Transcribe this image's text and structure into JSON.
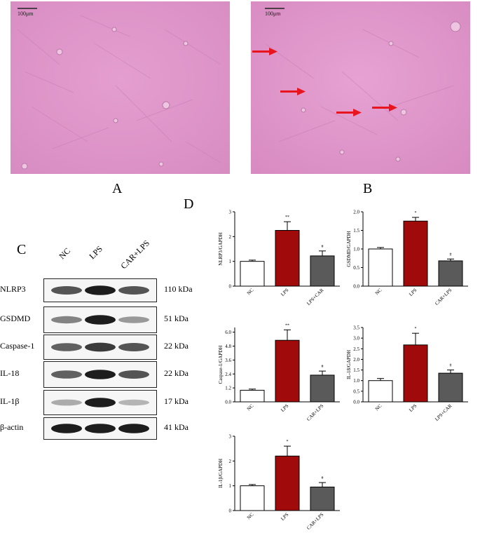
{
  "panels": {
    "a": {
      "letter": "A",
      "scale": "100μm"
    },
    "b": {
      "letter": "B",
      "scale": "100μm"
    },
    "c": {
      "letter": "C"
    },
    "d": {
      "letter": "D"
    }
  },
  "western": {
    "lanes": [
      "NC",
      "LPS",
      "CAR+LPS"
    ],
    "rows": [
      {
        "label": "NLRP3",
        "kda": "110 kDa",
        "intensity": [
          0.75,
          0.95,
          0.75
        ]
      },
      {
        "label": "GSDMD",
        "kda": "51 kDa",
        "intensity": [
          0.55,
          0.95,
          0.45
        ]
      },
      {
        "label": "Caspase-1",
        "kda": "22 kDa",
        "intensity": [
          0.7,
          0.85,
          0.75
        ]
      },
      {
        "label": "IL-18",
        "kda": "22 kDa",
        "intensity": [
          0.7,
          0.95,
          0.75
        ]
      },
      {
        "label": "IL-1β",
        "kda": "17 kDa",
        "intensity": [
          0.35,
          0.95,
          0.3
        ]
      },
      {
        "label": "β-actin",
        "kda": "41 kDa",
        "intensity": [
          0.95,
          0.95,
          0.95
        ]
      }
    ]
  },
  "colors": {
    "nc": "#ffffff",
    "lps": "#a00a0a",
    "car": "#5a5a5a",
    "tissue": "#dd95c8"
  },
  "chart_data": [
    {
      "type": "bar",
      "ylabel": "NLRP3/GAPDH",
      "categories": [
        "NC",
        "LPS",
        "LPS+CAR"
      ],
      "values": [
        1.0,
        2.25,
        1.22
      ],
      "errors": [
        0.05,
        0.35,
        0.2
      ],
      "sig": [
        "",
        "**",
        "#"
      ],
      "ylim": [
        0,
        3
      ],
      "ticks": [
        "0",
        "1",
        "2",
        "3"
      ],
      "tickvals": [
        0,
        1,
        2,
        3
      ]
    },
    {
      "type": "bar",
      "ylabel": "GSDMD/GAPDH",
      "categories": [
        "NC",
        "LPS",
        "CAR+LPS"
      ],
      "values": [
        1.0,
        1.75,
        0.68
      ],
      "errors": [
        0.04,
        0.1,
        0.05
      ],
      "sig": [
        "",
        "*",
        "#"
      ],
      "ylim": [
        0,
        2
      ],
      "ticks": [
        "0.0",
        "0.5",
        "1.0",
        "1.5",
        "2.0"
      ],
      "tickvals": [
        0,
        0.5,
        1,
        1.5,
        2
      ]
    },
    {
      "type": "bar",
      "ylabel": "Caspase-1/GAPDH",
      "categories": [
        "NC",
        "LPS",
        "CAR+LPS"
      ],
      "values": [
        1.0,
        5.3,
        2.3
      ],
      "errors": [
        0.1,
        0.9,
        0.35
      ],
      "sig": [
        "",
        "**",
        "#"
      ],
      "ylim": [
        0,
        6.4
      ],
      "ticks": [
        "0.0",
        "1.2",
        "2.4",
        "3.6",
        "4.8",
        "6.0"
      ],
      "tickvals": [
        0,
        1.2,
        2.4,
        3.6,
        4.8,
        6
      ]
    },
    {
      "type": "bar",
      "ylabel": "IL-18/GAPDH",
      "categories": [
        "NC",
        "LPS",
        "LPS+CAR"
      ],
      "values": [
        1.0,
        2.68,
        1.35
      ],
      "errors": [
        0.1,
        0.55,
        0.15
      ],
      "sig": [
        "",
        "*",
        "#"
      ],
      "ylim": [
        0,
        3.5
      ],
      "ticks": [
        "0.0",
        "0.5",
        "1.0",
        "1.5",
        "2.0",
        "2.5",
        "3.0",
        "3.5"
      ],
      "tickvals": [
        0,
        0.5,
        1,
        1.5,
        2,
        2.5,
        3,
        3.5
      ]
    },
    {
      "type": "bar",
      "ylabel": "IL-1β/GAPDH",
      "categories": [
        "NC",
        "LPS",
        "CAR+LPS"
      ],
      "values": [
        1.0,
        2.2,
        0.95
      ],
      "errors": [
        0.05,
        0.4,
        0.18
      ],
      "sig": [
        "",
        "*",
        "#"
      ],
      "ylim": [
        0,
        3
      ],
      "ticks": [
        "0",
        "1",
        "2",
        "3"
      ],
      "tickvals": [
        0,
        1,
        2,
        3
      ]
    }
  ]
}
